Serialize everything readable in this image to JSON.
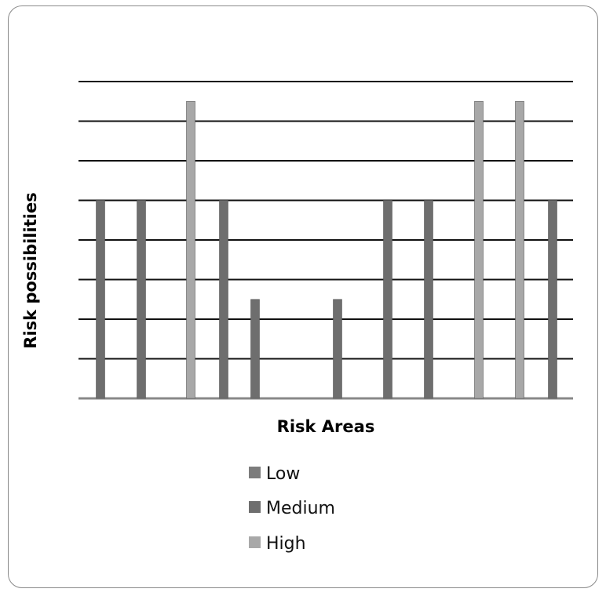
{
  "chart_data": {
    "type": "bar",
    "title": "",
    "xlabel": "Risk Areas",
    "ylabel": "Risk possibilities",
    "ylim": [
      0,
      8
    ],
    "grid": true,
    "legend_position": "bottom",
    "series": [
      {
        "name": "Low",
        "color": "#7c7c7c"
      },
      {
        "name": "Medium",
        "color": "#6e6e6e"
      },
      {
        "name": "High",
        "color": "#a8a8a8"
      }
    ],
    "bars": [
      {
        "series": "Medium",
        "value": 5
      },
      {
        "series": "Medium",
        "value": 5
      },
      {
        "series": "High",
        "value": 7.5
      },
      {
        "series": "Medium",
        "value": 5
      },
      {
        "series": "Medium",
        "value": 2.5
      },
      {
        "series": "Medium",
        "value": 2.5
      },
      {
        "series": "Medium",
        "value": 5
      },
      {
        "series": "Medium",
        "value": 5
      },
      {
        "series": "High",
        "value": 7.5
      },
      {
        "series": "High",
        "value": 7.5
      },
      {
        "series": "Medium",
        "value": 5
      }
    ]
  }
}
